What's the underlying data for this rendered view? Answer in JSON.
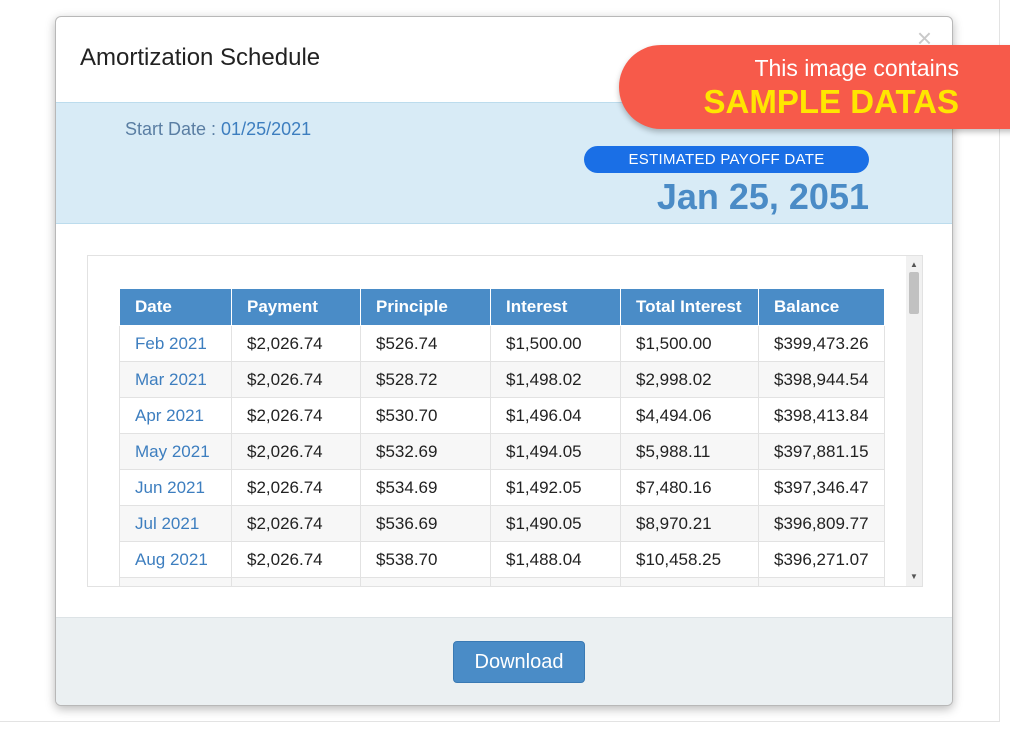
{
  "modal": {
    "title": "Amortization Schedule",
    "close_glyph": "×"
  },
  "summary": {
    "start_date_label": "Start Date : ",
    "start_date_value": "01/25/2021",
    "payoff_badge": "ESTIMATED PAYOFF DATE",
    "payoff_date": "Jan 25, 2051"
  },
  "table": {
    "headers": [
      "Date",
      "Payment",
      "Principle",
      "Interest",
      "Total Interest",
      "Balance"
    ],
    "rows": [
      [
        "Feb 2021",
        "$2,026.74",
        "$526.74",
        "$1,500.00",
        "$1,500.00",
        "$399,473.26"
      ],
      [
        "Mar 2021",
        "$2,026.74",
        "$528.72",
        "$1,498.02",
        "$2,998.02",
        "$398,944.54"
      ],
      [
        "Apr 2021",
        "$2,026.74",
        "$530.70",
        "$1,496.04",
        "$4,494.06",
        "$398,413.84"
      ],
      [
        "May 2021",
        "$2,026.74",
        "$532.69",
        "$1,494.05",
        "$5,988.11",
        "$397,881.15"
      ],
      [
        "Jun 2021",
        "$2,026.74",
        "$534.69",
        "$1,492.05",
        "$7,480.16",
        "$397,346.47"
      ],
      [
        "Jul 2021",
        "$2,026.74",
        "$536.69",
        "$1,490.05",
        "$8,970.21",
        "$396,809.77"
      ],
      [
        "Aug 2021",
        "$2,026.74",
        "$538.70",
        "$1,488.04",
        "$10,458.25",
        "$396,271.07"
      ],
      [
        "",
        "",
        "",
        "",
        "",
        ""
      ]
    ]
  },
  "footer": {
    "download_label": "Download"
  },
  "banner": {
    "line1": "This image contains",
    "line2": "SAMPLE DATAS"
  },
  "colors": {
    "accent": "#4a8cc7",
    "badge": "#1a6fe6",
    "summary_bg": "#d8ebf6",
    "banner_bg": "#f75a4a",
    "banner_highlight": "#ffe600"
  },
  "icons": {
    "close": "close-icon",
    "scroll_up": "arrow-up-icon",
    "scroll_down": "arrow-down-icon"
  }
}
